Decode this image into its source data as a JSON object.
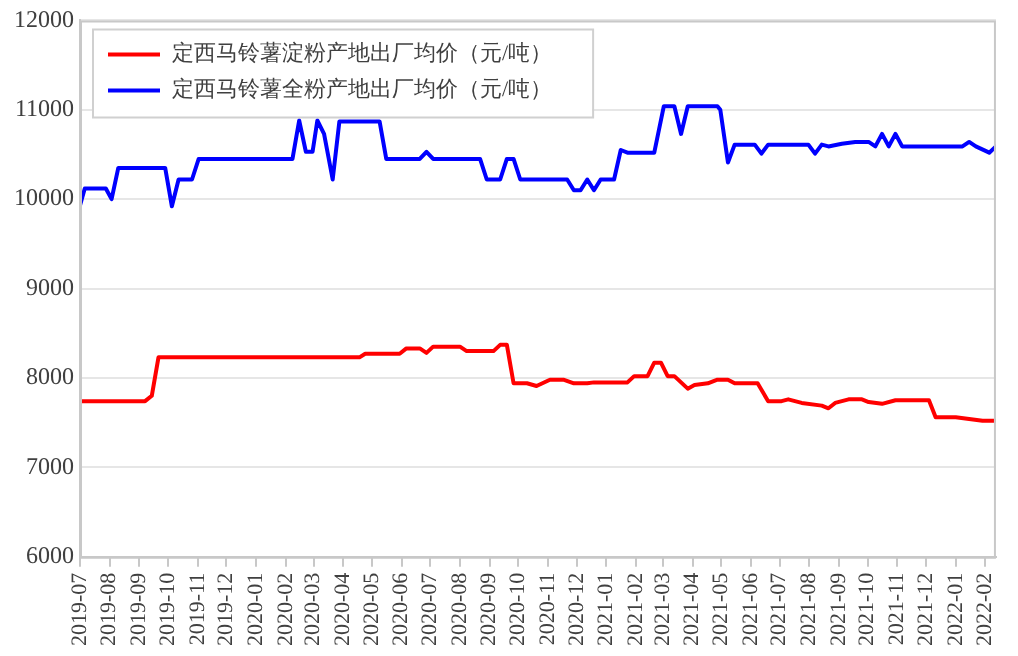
{
  "chart_data": {
    "type": "line",
    "xlim": [
      "2019-07-01",
      "2022-02-12"
    ],
    "xticks": [
      "2019-07",
      "2019-08",
      "2019-09",
      "2019-10",
      "2019-11",
      "2019-12",
      "2020-01",
      "2020-02",
      "2020-03",
      "2020-04",
      "2020-05",
      "2020-06",
      "2020-07",
      "2020-08",
      "2020-09",
      "2020-10",
      "2020-11",
      "2020-12",
      "2021-01",
      "2021-02",
      "2021-03",
      "2021-04",
      "2021-05",
      "2021-06",
      "2021-07",
      "2021-08",
      "2021-09",
      "2021-10",
      "2021-11",
      "2021-12",
      "2022-01",
      "2022-02"
    ],
    "ylim": [
      6000,
      12000
    ],
    "yticks": [
      6000,
      7000,
      8000,
      9000,
      10000,
      11000,
      12000
    ],
    "grid": "y",
    "legend": "top left",
    "marker": "none",
    "line_style": "solid",
    "series": [
      {
        "name": "定西马铃薯淀粉产地出厂均价（元/吨）",
        "color": "#ff0000",
        "x": [
          "2019-07-01",
          "2019-09-07",
          "2019-09-14",
          "2019-09-21",
          "2020-04-18",
          "2020-04-24",
          "2020-05-30",
          "2020-06-06",
          "2020-06-20",
          "2020-06-27",
          "2020-07-04",
          "2020-08-01",
          "2020-08-08",
          "2020-09-05",
          "2020-09-12",
          "2020-09-19",
          "2020-09-26",
          "2020-10-10",
          "2020-10-20",
          "2020-11-03",
          "2020-11-17",
          "2020-11-28",
          "2020-12-12",
          "2020-12-19",
          "2021-01-23",
          "2021-01-30",
          "2021-02-13",
          "2021-02-20",
          "2021-02-27",
          "2021-03-06",
          "2021-03-13",
          "2021-03-27",
          "2021-04-03",
          "2021-04-17",
          "2021-04-27",
          "2021-05-08",
          "2021-05-15",
          "2021-06-08",
          "2021-06-19",
          "2021-07-03",
          "2021-07-10",
          "2021-07-17",
          "2021-07-24",
          "2021-08-14",
          "2021-08-21",
          "2021-08-28",
          "2021-09-11",
          "2021-09-25",
          "2021-10-02",
          "2021-10-16",
          "2021-10-30",
          "2021-12-04",
          "2021-12-11",
          "2022-01-01",
          "2022-01-15",
          "2022-01-29",
          "2022-02-12"
        ],
        "values": [
          7740,
          7740,
          7800,
          8230,
          8230,
          8270,
          8270,
          8330,
          8330,
          8280,
          8350,
          8350,
          8300,
          8300,
          8370,
          8370,
          7940,
          7940,
          7910,
          7980,
          7980,
          7940,
          7940,
          7950,
          7950,
          8020,
          8020,
          8170,
          8170,
          8020,
          8020,
          7880,
          7920,
          7940,
          7980,
          7980,
          7940,
          7940,
          7740,
          7740,
          7760,
          7740,
          7720,
          7690,
          7660,
          7720,
          7760,
          7760,
          7730,
          7710,
          7750,
          7750,
          7560,
          7560,
          7540,
          7520,
          7520
        ]
      },
      {
        "name": "定西马铃薯全粉产地出厂均价（元/吨）",
        "color": "#0000ff",
        "x": [
          "2019-07-01",
          "2019-07-06",
          "2019-07-28",
          "2019-08-03",
          "2019-08-10",
          "2019-09-28",
          "2019-10-05",
          "2019-10-12",
          "2019-10-26",
          "2019-11-02",
          "2020-02-08",
          "2020-02-15",
          "2020-02-22",
          "2020-02-29",
          "2020-03-05",
          "2020-03-12",
          "2020-03-21",
          "2020-03-28",
          "2020-05-09",
          "2020-05-16",
          "2020-06-20",
          "2020-06-27",
          "2020-07-04",
          "2020-08-22",
          "2020-08-29",
          "2020-09-12",
          "2020-09-19",
          "2020-09-26",
          "2020-10-03",
          "2020-11-21",
          "2020-11-28",
          "2020-12-05",
          "2020-12-12",
          "2020-12-19",
          "2020-12-26",
          "2021-01-09",
          "2021-01-16",
          "2021-01-23",
          "2021-02-20",
          "2021-03-02",
          "2021-03-13",
          "2021-03-20",
          "2021-03-27",
          "2021-04-27",
          "2021-04-30",
          "2021-05-08",
          "2021-05-15",
          "2021-06-05",
          "2021-06-12",
          "2021-06-19",
          "2021-07-31",
          "2021-08-07",
          "2021-08-14",
          "2021-08-21",
          "2021-09-04",
          "2021-09-18",
          "2021-10-02",
          "2021-10-09",
          "2021-10-16",
          "2021-10-23",
          "2021-10-30",
          "2021-11-06",
          "2022-01-08",
          "2022-01-15",
          "2022-01-22",
          "2022-02-05",
          "2022-02-12"
        ],
        "values": [
          9930,
          10120,
          10120,
          10000,
          10350,
          10350,
          9920,
          10220,
          10220,
          10450,
          10450,
          10880,
          10530,
          10530,
          10880,
          10730,
          10220,
          10870,
          10870,
          10450,
          10450,
          10530,
          10450,
          10450,
          10220,
          10220,
          10450,
          10450,
          10220,
          10220,
          10100,
          10100,
          10220,
          10100,
          10220,
          10220,
          10550,
          10520,
          10520,
          11040,
          11040,
          10730,
          11040,
          11040,
          11000,
          10410,
          10610,
          10610,
          10510,
          10610,
          10610,
          10510,
          10610,
          10590,
          10620,
          10640,
          10640,
          10590,
          10730,
          10590,
          10730,
          10590,
          10590,
          10640,
          10590,
          10520,
          10590
        ]
      }
    ]
  }
}
